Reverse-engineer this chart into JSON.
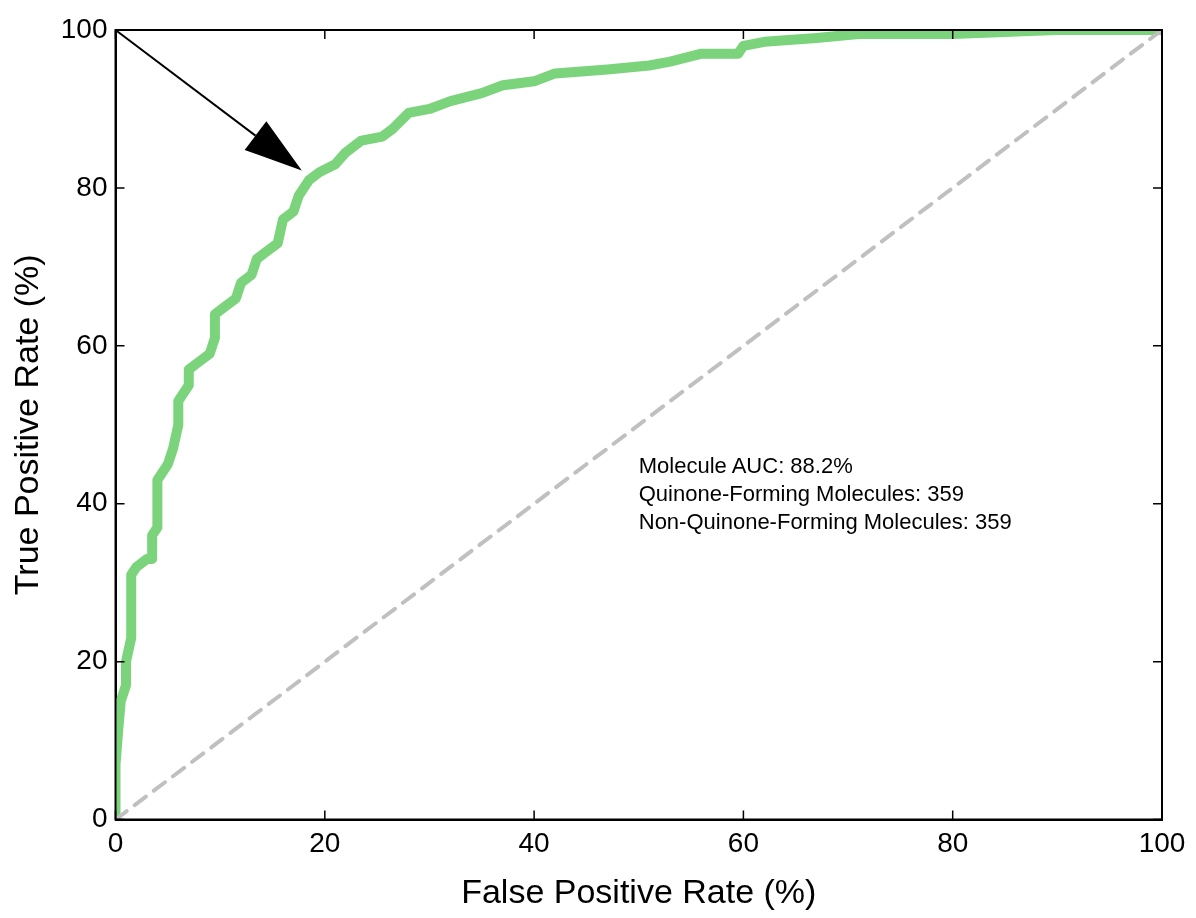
{
  "chart_data": {
    "type": "line",
    "xlabel": "False Positive Rate (%)",
    "ylabel": "True Positive Rate (%)",
    "xlim": [
      0,
      100
    ],
    "ylim": [
      0,
      100
    ],
    "xticks": [
      0,
      20,
      40,
      60,
      80,
      100
    ],
    "yticks": [
      0,
      20,
      40,
      60,
      80,
      100
    ],
    "grid": false,
    "legend": false,
    "marker": "none",
    "annotations": [
      "Molecule AUC: 88.2%",
      "Quinone-Forming Molecules: 359",
      "Non-Quinone-Forming Molecules: 359"
    ],
    "series": [
      {
        "color": "#7bd47b",
        "line_style": "solid",
        "x": [
          0,
          0,
          0.3,
          0.5,
          1,
          1,
          1.5,
          1.5,
          2,
          3,
          3.5,
          3.5,
          4,
          4,
          5,
          5.5,
          6,
          6,
          7,
          7,
          8,
          9,
          9.5,
          9.5,
          10.5,
          11.5,
          12,
          13,
          13.5,
          14.5,
          15.5,
          16,
          17,
          17.5,
          18.5,
          19.5,
          21,
          22,
          23.5,
          25.5,
          26.5,
          28,
          30,
          32,
          35,
          37,
          40,
          42,
          47,
          51,
          53,
          56,
          59.5,
          60,
          62,
          67,
          71,
          80,
          90,
          100
        ],
        "values": [
          0,
          7,
          12,
          15,
          17,
          20,
          23,
          31,
          32,
          33,
          33,
          36,
          37,
          43,
          45,
          47,
          50,
          53,
          55,
          57,
          58,
          59,
          61,
          64,
          65,
          66,
          68,
          69,
          71,
          72,
          73,
          76,
          77,
          79,
          81,
          82,
          83,
          84.5,
          86,
          86.5,
          87.5,
          89.5,
          90,
          91,
          92,
          93,
          93.5,
          94.5,
          95,
          95.5,
          96,
          97,
          97,
          98,
          98.5,
          99,
          99.5,
          99.5,
          100,
          100
        ]
      },
      {
        "color": "#c0c0c0",
        "line_style": "dashed",
        "x": [
          0,
          100
        ],
        "values": [
          0,
          100
        ]
      }
    ]
  }
}
